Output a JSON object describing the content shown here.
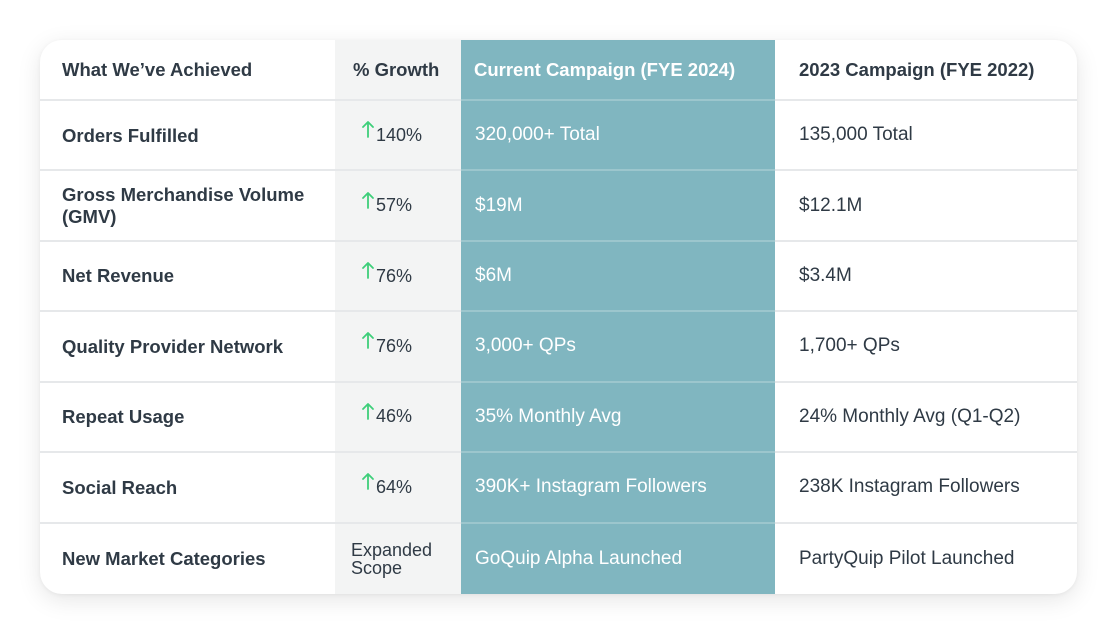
{
  "header": {
    "col1": "What We’ve Achieved",
    "col2": "% Growth",
    "col3": "Current Campaign (FYE 2024)",
    "col4": "2023 Campaign (FYE 2022)"
  },
  "colors": {
    "accent_column": "#80b6c0",
    "growth_column": "#f3f4f4",
    "arrow_green": "#3ecf7a",
    "text": "#2f3a45"
  },
  "rows": [
    {
      "metric": "Orders Fulfilled",
      "growth": "140%",
      "current": "320,000+ Total",
      "previous": "135,000 Total"
    },
    {
      "metric": "Gross Merchandise Volume (GMV)",
      "growth": "57%",
      "current": "$19M",
      "previous": "$12.1M"
    },
    {
      "metric": "Net Revenue",
      "growth": "76%",
      "current": "$6M",
      "previous": "$3.4M"
    },
    {
      "metric": "Quality Provider Network",
      "growth": "76%",
      "current": "3,000+ QPs",
      "previous": "1,700+ QPs"
    },
    {
      "metric": "Repeat Usage",
      "growth": "46%",
      "current": "35% Monthly Avg",
      "previous": "24% Monthly Avg (Q1-Q2)"
    },
    {
      "metric": "Social Reach",
      "growth": "64%",
      "current": "390K+ Instagram Followers",
      "previous": "238K Instagram Followers"
    },
    {
      "metric": "New Market Categories",
      "growth": "Expanded Scope",
      "current": "GoQuip Alpha Launched",
      "previous": "PartyQuip Pilot Launched"
    }
  ],
  "icons": {
    "growth_arrow": "arrow-up-icon"
  }
}
